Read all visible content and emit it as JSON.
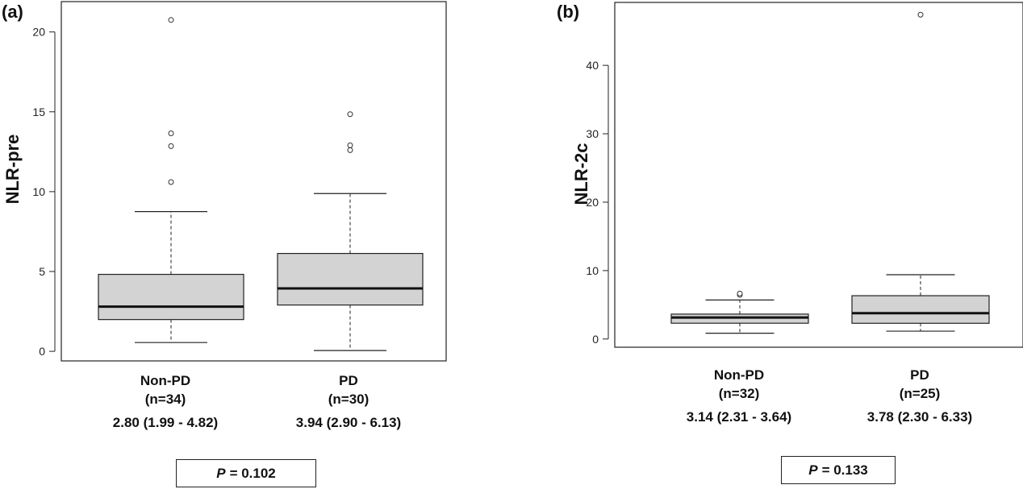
{
  "chart_data": [
    {
      "type": "boxplot",
      "panel": "(a)",
      "ylabel": "NLR-pre",
      "ylim": [
        -0.6,
        21.9
      ],
      "yticks": [
        0,
        5,
        10,
        15,
        20
      ],
      "grid": false,
      "groups": [
        {
          "name": "Non-PD",
          "n_label": "(n=34)",
          "stat_label": "2.80 (1.99 - 4.82)",
          "whisker_low": 0.55,
          "q1": 1.99,
          "median": 2.8,
          "q3": 4.82,
          "whisker_high": 8.75,
          "outliers": [
            10.6,
            12.85,
            13.65,
            20.75
          ]
        },
        {
          "name": "PD",
          "n_label": "(n=30)",
          "stat_label": "3.94 (2.90 - 6.13)",
          "whisker_low": 0.05,
          "q1": 2.9,
          "median": 3.94,
          "q3": 6.13,
          "whisker_high": 9.88,
          "outliers": [
            12.6,
            12.9,
            14.85
          ]
        }
      ],
      "p_label": "P",
      "p_value": "= 0.102"
    },
    {
      "type": "boxplot",
      "panel": "(b)",
      "ylabel": "NLR-2c",
      "ylim": [
        -1.2,
        49.2
      ],
      "yticks": [
        0,
        10,
        20,
        30,
        40
      ],
      "grid": false,
      "groups": [
        {
          "name": "Non-PD",
          "n_label": "(n=32)",
          "stat_label": "3.14 (2.31 - 3.64)",
          "whisker_low": 0.85,
          "q1": 2.31,
          "median": 3.14,
          "q3": 3.64,
          "whisker_high": 5.7,
          "outliers": [
            6.45,
            6.65
          ]
        },
        {
          "name": "PD",
          "n_label": "(n=25)",
          "stat_label": "3.78 (2.30 - 6.33)",
          "whisker_low": 1.15,
          "q1": 2.3,
          "median": 3.78,
          "q3": 6.33,
          "whisker_high": 9.4,
          "outliers": [
            47.4
          ]
        }
      ],
      "p_label": "P",
      "p_value": "= 0.133"
    }
  ]
}
